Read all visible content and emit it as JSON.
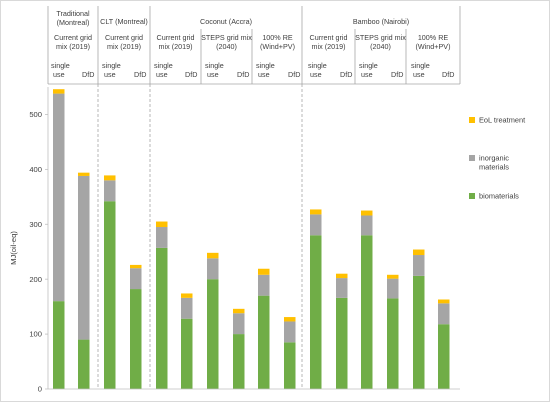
{
  "chart_data": {
    "type": "bar",
    "stacked": true,
    "ylabel": "MJ(oil-eq)",
    "ylim": [
      0,
      550
    ],
    "yticks": [
      0,
      100,
      200,
      300,
      400,
      500
    ],
    "grid": false,
    "legend_position": "right",
    "colors": {
      "biomaterials": "#70ad47",
      "inorganic materials": "#a5a5a5",
      "EoL treatment": "#ffc000",
      "divider": "#a6a6a6",
      "axis": "#bfbfbf"
    },
    "legend": [
      "EoL treatment",
      "inorganic materials",
      "biomaterials"
    ],
    "header": {
      "materials": [
        {
          "label": "Traditional",
          "label2": "(Montreal)"
        },
        {
          "label": "CLT (Montreal)"
        },
        {
          "label": "Coconut (Accra)"
        },
        {
          "label": "Bamboo (Nairobi)"
        }
      ],
      "scenarios": [
        {
          "line1": "Current grid",
          "line2": "mix (2019)"
        },
        {
          "line1": "Current grid",
          "line2": "mix (2019)"
        },
        {
          "line1": "Current grid",
          "line2": "mix (2019)"
        },
        {
          "line1": "STEPS grid mix",
          "line2": "(2040)"
        },
        {
          "line1": "100% RE",
          "line2": "(Wind+PV)"
        },
        {
          "line1": "Current grid",
          "line2": "mix (2019)"
        },
        {
          "line1": "STEPS grid mix",
          "line2": "(2040)"
        },
        {
          "line1": "100% RE",
          "line2": "(Wind+PV)"
        }
      ],
      "use_labels": {
        "single_a": "single",
        "single_b": "use",
        "dfd": "DfD"
      }
    },
    "categories": [
      "Traditional single use",
      "Traditional DfD",
      "CLT single use",
      "CLT DfD",
      "Coconut current single use",
      "Coconut current DfD",
      "Coconut STEPS single use",
      "Coconut STEPS DfD",
      "Coconut RE single use",
      "Coconut RE DfD",
      "Bamboo current single use",
      "Bamboo current DfD",
      "Bamboo STEPS single use",
      "Bamboo STEPS DfD",
      "Bamboo RE single use",
      "Bamboo RE DfD"
    ],
    "series": [
      {
        "name": "biomaterials",
        "values": [
          160,
          90,
          342,
          182,
          257,
          128,
          200,
          100,
          170,
          85,
          280,
          166,
          280,
          165,
          206,
          118
        ]
      },
      {
        "name": "inorganic materials",
        "values": [
          378,
          298,
          38,
          38,
          38,
          38,
          38,
          38,
          38,
          38,
          38,
          36,
          36,
          36,
          38,
          38
        ]
      },
      {
        "name": "EoL treatment",
        "values": [
          8,
          6,
          9,
          6,
          10,
          8,
          10,
          8,
          11,
          8,
          9,
          8,
          9,
          7,
          10,
          7
        ]
      }
    ]
  }
}
